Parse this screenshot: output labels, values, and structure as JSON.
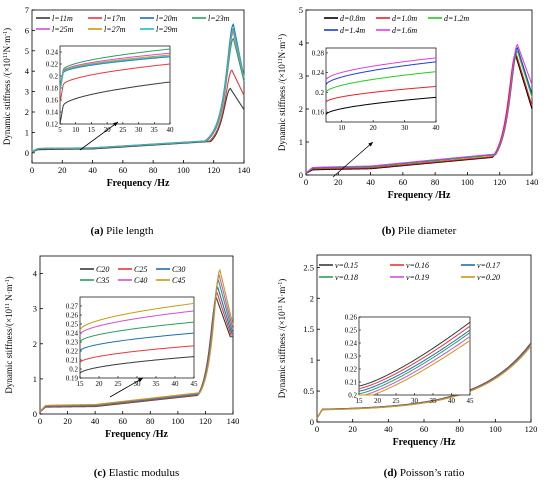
{
  "chart_data": [
    {
      "type": "line",
      "caption_letter": "(a)",
      "caption_text": "Pile length",
      "xlabel": "Frequency /Hz",
      "ylabel": "Dynamic stiffness /(×10",
      "ylabel_exp": "11",
      "ylabel_unit": "N·m",
      "ylabel_unit_exp": "-1",
      "ylabel_close": ")",
      "xlim": [
        0,
        140
      ],
      "ylim": [
        -0.5,
        7
      ],
      "xticks": [
        0,
        20,
        40,
        60,
        80,
        100,
        120,
        140
      ],
      "yticks": [
        0,
        1,
        2,
        3,
        4,
        5,
        6,
        7
      ],
      "legend_placement": "top-left",
      "legend_cols": 4,
      "inset": {
        "xlim": [
          5,
          40
        ],
        "ylim": [
          0.12,
          0.25
        ],
        "xticks": [
          5,
          10,
          15,
          20,
          25,
          30,
          35,
          40
        ],
        "yticks": [
          0.12,
          0.14,
          0.16,
          0.18,
          0.2,
          0.22,
          0.24
        ]
      },
      "series": [
        {
          "name": "l=11m",
          "color": "#3a3a3a",
          "low": 0.15,
          "at40": 0.19,
          "peak_f": 131,
          "peak": 3.15,
          "end": 2.0
        },
        {
          "name": "l=17m",
          "color": "#e8383d",
          "low": 0.185,
          "at40": 0.22,
          "peak_f": 132,
          "peak": 4.05,
          "end": 2.5
        },
        {
          "name": "l=20m",
          "color": "#1f6fb4",
          "low": 0.205,
          "at40": 0.232,
          "peak_f": 133,
          "peak": 6.3,
          "end": 2.6
        },
        {
          "name": "l=23m",
          "color": "#2ca05a",
          "low": 0.21,
          "at40": 0.245,
          "peak_f": 133,
          "peak": 5.6,
          "end": 2.6
        },
        {
          "name": "l=25m",
          "color": "#d04fd8",
          "low": 0.208,
          "at40": 0.238,
          "peak_f": 133,
          "peak": 5.9,
          "end": 2.7
        },
        {
          "name": "l=27m",
          "color": "#c99a16",
          "low": 0.207,
          "at40": 0.235,
          "peak_f": 133,
          "peak": 6.0,
          "end": 2.7
        },
        {
          "name": "l=29m",
          "color": "#27b8c8",
          "low": 0.206,
          "at40": 0.233,
          "peak_f": 133,
          "peak": 6.1,
          "end": 2.7
        }
      ]
    },
    {
      "type": "line",
      "caption_letter": "(b)",
      "caption_text": "Pile diameter",
      "xlabel": "Frequency /Hz",
      "ylabel": "Dynamic stiffness /(×10",
      "ylabel_exp": "11",
      "ylabel_unit": "N·m",
      "ylabel_unit_exp": "-1",
      "ylabel_close": ")",
      "xlim": [
        0,
        140
      ],
      "ylim": [
        0,
        5
      ],
      "xticks": [
        0,
        20,
        40,
        60,
        80,
        100,
        120,
        140
      ],
      "yticks": [
        0,
        1,
        2,
        3,
        4,
        5
      ],
      "legend_placement": "top-left",
      "legend_cols": 3,
      "inset": {
        "xlim": [
          5,
          40
        ],
        "ylim": [
          0.14,
          0.29
        ],
        "xticks": [
          10,
          20,
          30,
          40
        ],
        "yticks": [
          0.16,
          0.2,
          0.24,
          0.28
        ]
      },
      "series": [
        {
          "name": "d=0.8m",
          "color": "#000000",
          "low": 0.155,
          "at40": 0.19,
          "peak_f": 130,
          "peak": 3.6,
          "end": 2.0
        },
        {
          "name": "d=1.0m",
          "color": "#e8202a",
          "low": 0.18,
          "at40": 0.212,
          "peak_f": 130,
          "peak": 3.7,
          "end": 2.1
        },
        {
          "name": "d=1.2m",
          "color": "#22cc22",
          "low": 0.2,
          "at40": 0.242,
          "peak_f": 131,
          "peak": 3.75,
          "end": 2.2
        },
        {
          "name": "d=1.4m",
          "color": "#1a3fd0",
          "low": 0.215,
          "at40": 0.262,
          "peak_f": 131,
          "peak": 3.85,
          "end": 2.3
        },
        {
          "name": "d=1.6m",
          "color": "#e040e0",
          "low": 0.225,
          "at40": 0.27,
          "peak_f": 131,
          "peak": 3.95,
          "end": 2.6
        }
      ]
    },
    {
      "type": "line",
      "caption_letter": "(c)",
      "caption_text": "Elastic modulus",
      "xlabel": "Frequency /Hz",
      "ylabel": "Dynamic stiffness/(×10",
      "ylabel_exp": "11",
      "ylabel_unit": " N·m",
      "ylabel_unit_exp": "-1",
      "ylabel_close": ")",
      "xlim": [
        0,
        140
      ],
      "ylim": [
        0,
        4.5
      ],
      "xticks": [
        0,
        20,
        40,
        60,
        80,
        100,
        120,
        140
      ],
      "yticks": [
        0,
        1,
        2,
        3,
        4
      ],
      "legend_placement": "top-center",
      "legend_cols": 3,
      "inset": {
        "xlim": [
          15,
          45
        ],
        "ylim": [
          0.19,
          0.28
        ],
        "xticks": [
          15,
          20,
          25,
          30,
          35,
          40,
          45
        ],
        "yticks": [
          0.19,
          0.2,
          0.21,
          0.22,
          0.23,
          0.24,
          0.25,
          0.26,
          0.27
        ]
      },
      "series": [
        {
          "name": "C20",
          "color": "#3a3a3a",
          "low": 0.195,
          "at40": 0.212,
          "peak_f": 128,
          "peak": 3.3,
          "end": 2.2
        },
        {
          "name": "C25",
          "color": "#e8383d",
          "low": 0.207,
          "at40": 0.224,
          "peak_f": 128.5,
          "peak": 3.45,
          "end": 2.25
        },
        {
          "name": "C30",
          "color": "#1f6fb4",
          "low": 0.22,
          "at40": 0.238,
          "peak_f": 129,
          "peak": 3.6,
          "end": 2.3
        },
        {
          "name": "C35",
          "color": "#2ca05a",
          "low": 0.23,
          "at40": 0.25,
          "peak_f": 129.5,
          "peak": 3.8,
          "end": 2.35
        },
        {
          "name": "C40",
          "color": "#d04fd8",
          "low": 0.238,
          "at40": 0.262,
          "peak_f": 130,
          "peak": 3.95,
          "end": 2.4
        },
        {
          "name": "C45",
          "color": "#c99a16",
          "low": 0.243,
          "at40": 0.27,
          "peak_f": 130.5,
          "peak": 4.1,
          "end": 2.45
        }
      ]
    },
    {
      "type": "line",
      "caption_letter": "(d)",
      "caption_text": "Poisson’s ratio",
      "xlabel": "Frequency /Hz",
      "ylabel": "Dynamic stiffness /(×10",
      "ylabel_exp": "11",
      "ylabel_unit": " N·m",
      "ylabel_unit_exp": "-1",
      "ylabel_close": ")",
      "xlim": [
        0,
        120
      ],
      "ylim": [
        0,
        2.7
      ],
      "xticks": [
        0,
        20,
        40,
        60,
        80,
        100,
        120
      ],
      "yticks": [
        0,
        0.5,
        1,
        1.5,
        2,
        2.5
      ],
      "legend_placement": "top-center",
      "legend_cols": 3,
      "inset": {
        "xlim": [
          15,
          45
        ],
        "ylim": [
          0.2,
          0.26
        ],
        "xticks": [
          15,
          20,
          25,
          30,
          35,
          40,
          45
        ],
        "yticks": [
          0.2,
          0.21,
          0.22,
          0.23,
          0.24,
          0.25,
          0.26
        ]
      },
      "series": [
        {
          "name": "v=0.15",
          "color": "#3a3a3a",
          "low": 0.207,
          "at45": 0.256,
          "end": 1.28
        },
        {
          "name": "v=0.16",
          "color": "#e8383d",
          "low": 0.205,
          "at45": 0.253,
          "end": 1.27
        },
        {
          "name": "v=0.17",
          "color": "#1f6fb4",
          "low": 0.203,
          "at45": 0.25,
          "end": 1.26
        },
        {
          "name": "v=0.18",
          "color": "#2ca05a",
          "low": 0.201,
          "at45": 0.248,
          "end": 1.25
        },
        {
          "name": "v=0.19",
          "color": "#d04fd8",
          "low": 0.199,
          "at45": 0.245,
          "end": 1.24
        },
        {
          "name": "v=0.20",
          "color": "#c99a16",
          "low": 0.197,
          "at45": 0.242,
          "end": 1.23
        }
      ]
    }
  ]
}
